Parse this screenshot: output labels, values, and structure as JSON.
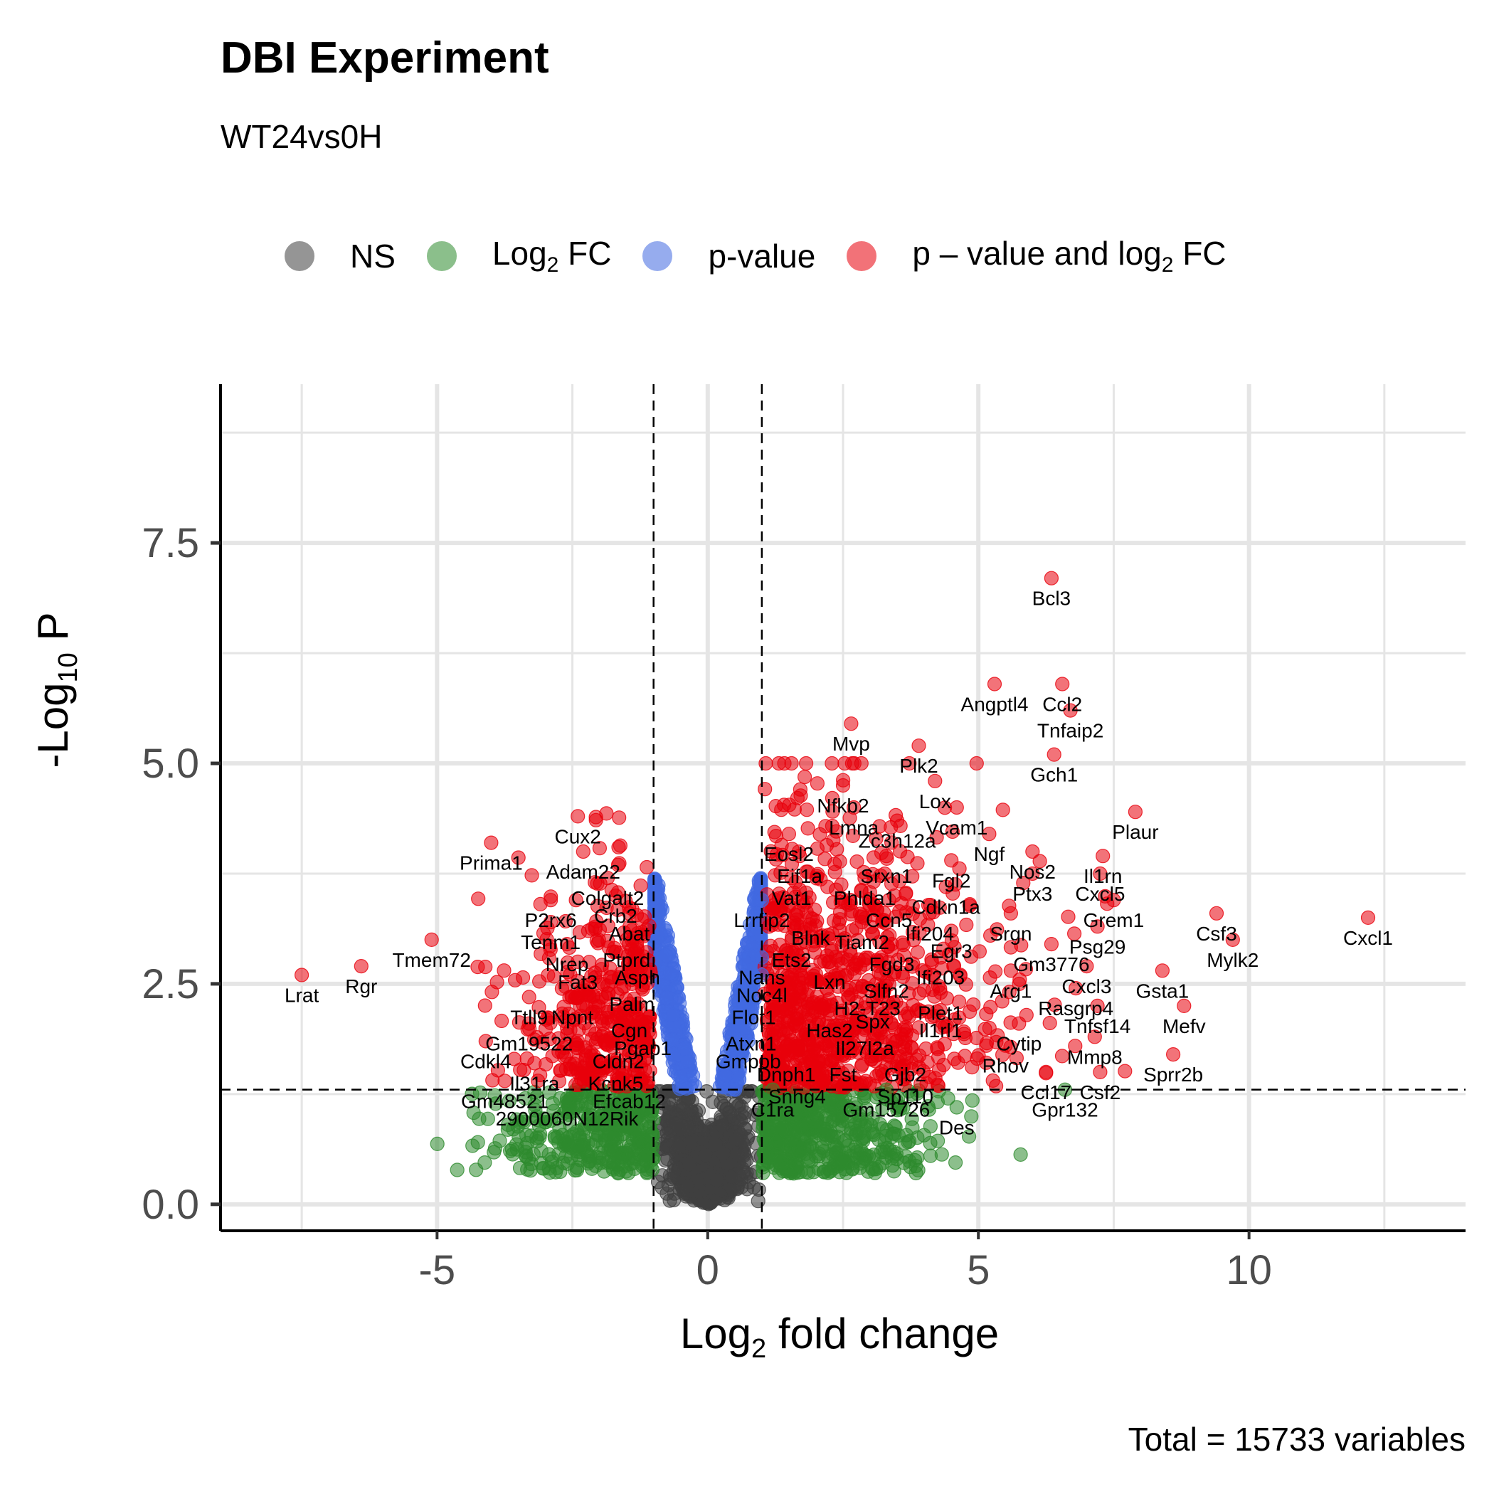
{
  "title": "DBI Experiment",
  "subtitle": "WT24vs0H",
  "caption": "Total = 15733 variables",
  "legend": [
    {
      "label": "NS",
      "color": "#404040"
    },
    {
      "label": "Log2 FC",
      "color": "#2e8b2e"
    },
    {
      "label": "p-value",
      "color": "#4169e1"
    },
    {
      "label": "p – value and log2 FC",
      "color": "#e8000b"
    }
  ],
  "chart_data": {
    "type": "scatter",
    "title": "DBI Experiment",
    "subtitle": "WT24vs0H",
    "xlabel": "Log2 fold change",
    "ylabel": "-Log10 P",
    "xlim": [
      -9.0,
      14.0
    ],
    "ylim": [
      -0.3,
      9.3
    ],
    "x_ticks": [
      -5,
      0,
      5,
      10
    ],
    "x_tick_labels": [
      "-5",
      "0",
      "5",
      "10"
    ],
    "y_ticks": [
      0.0,
      2.5,
      5.0,
      7.5
    ],
    "y_tick_labels": [
      "0.0",
      "2.5",
      "5.0",
      "7.5"
    ],
    "grid": true,
    "thresholds": {
      "log2fc": [
        -1,
        1
      ],
      "neg_log10_p": 1.3
    },
    "series_colors": {
      "NS": "#404040",
      "Log2 FC": "#2e8b2e",
      "p-value": "#4169e1",
      "p-value and log2 FC": "#e8000b"
    },
    "labeled_points": [
      {
        "gene": "Bcl3",
        "x": 6.35,
        "y": 7.1
      },
      {
        "gene": "Angptl4",
        "x": 5.3,
        "y": 5.9
      },
      {
        "gene": "Ccl2",
        "x": 6.55,
        "y": 5.9
      },
      {
        "gene": "Tnfaip2",
        "x": 6.7,
        "y": 5.6
      },
      {
        "gene": "Gch1",
        "x": 6.4,
        "y": 5.1
      },
      {
        "gene": "Mvp",
        "x": 2.65,
        "y": 5.45
      },
      {
        "gene": "Plk2",
        "x": 3.9,
        "y": 5.2
      },
      {
        "gene": "Nfkb2",
        "x": 2.5,
        "y": 4.75
      },
      {
        "gene": "Lox",
        "x": 4.2,
        "y": 4.8
      },
      {
        "gene": "Lmna",
        "x": 2.7,
        "y": 4.5
      },
      {
        "gene": "Vcam1",
        "x": 4.6,
        "y": 4.5
      },
      {
        "gene": "Zc3h12a",
        "x": 3.5,
        "y": 4.35
      },
      {
        "gene": "Ngf",
        "x": 5.2,
        "y": 4.2
      },
      {
        "gene": "Plaur",
        "x": 7.9,
        "y": 4.45
      },
      {
        "gene": "Eosl2",
        "x": 1.5,
        "y": 4.2
      },
      {
        "gene": "Nos2",
        "x": 6.0,
        "y": 4.0
      },
      {
        "gene": "Il1rn",
        "x": 7.3,
        "y": 3.95
      },
      {
        "gene": "Eif1a",
        "x": 1.7,
        "y": 3.95
      },
      {
        "gene": "Srxn1",
        "x": 3.3,
        "y": 3.95
      },
      {
        "gene": "Fgl2",
        "x": 4.5,
        "y": 3.9
      },
      {
        "gene": "Ptx3",
        "x": 6.0,
        "y": 3.75
      },
      {
        "gene": "Cxcl5",
        "x": 7.25,
        "y": 3.75
      },
      {
        "gene": "Vat1",
        "x": 1.55,
        "y": 3.7
      },
      {
        "gene": "Phlda1",
        "x": 2.9,
        "y": 3.7
      },
      {
        "gene": "Cdkn1a",
        "x": 4.4,
        "y": 3.6
      },
      {
        "gene": "Grem1",
        "x": 7.5,
        "y": 3.45
      },
      {
        "gene": "Lrrfip2",
        "x": 1.0,
        "y": 3.45
      },
      {
        "gene": "Ccn5",
        "x": 3.35,
        "y": 3.45
      },
      {
        "gene": "Ifi204",
        "x": 4.1,
        "y": 3.3
      },
      {
        "gene": "Srgn",
        "x": 5.6,
        "y": 3.3
      },
      {
        "gene": "Csf3",
        "x": 9.4,
        "y": 3.3
      },
      {
        "gene": "Cxcl1",
        "x": 12.2,
        "y": 3.25
      },
      {
        "gene": "Blnk",
        "x": 1.9,
        "y": 3.25
      },
      {
        "gene": "Tiam2",
        "x": 2.85,
        "y": 3.2
      },
      {
        "gene": "Psg29",
        "x": 7.2,
        "y": 3.15
      },
      {
        "gene": "Egr3",
        "x": 4.5,
        "y": 3.1
      },
      {
        "gene": "Ets2",
        "x": 1.55,
        "y": 3.0
      },
      {
        "gene": "Gm3776",
        "x": 6.35,
        "y": 2.95
      },
      {
        "gene": "Mylk2",
        "x": 9.7,
        "y": 3.0
      },
      {
        "gene": "Fgd3",
        "x": 3.4,
        "y": 2.95
      },
      {
        "gene": "Ifi203",
        "x": 4.3,
        "y": 2.8
      },
      {
        "gene": "Nans",
        "x": 1.0,
        "y": 2.8
      },
      {
        "gene": "Lxn",
        "x": 2.25,
        "y": 2.75
      },
      {
        "gene": "Cxcl3",
        "x": 7.0,
        "y": 2.7
      },
      {
        "gene": "Gsta1",
        "x": 8.4,
        "y": 2.65
      },
      {
        "gene": "Noc4l",
        "x": 1.0,
        "y": 2.6
      },
      {
        "gene": "Slfn2",
        "x": 3.3,
        "y": 2.65
      },
      {
        "gene": "Arg1",
        "x": 5.6,
        "y": 2.65
      },
      {
        "gene": "Flot1",
        "x": 0.85,
        "y": 2.35
      },
      {
        "gene": "H2-T23",
        "x": 2.95,
        "y": 2.45
      },
      {
        "gene": "Plet1",
        "x": 4.3,
        "y": 2.4
      },
      {
        "gene": "Rasgrp4",
        "x": 6.8,
        "y": 2.45
      },
      {
        "gene": "Tnfsf14",
        "x": 7.2,
        "y": 2.25
      },
      {
        "gene": "Mefv",
        "x": 8.8,
        "y": 2.25
      },
      {
        "gene": "Has2",
        "x": 2.25,
        "y": 2.2
      },
      {
        "gene": "Spx",
        "x": 3.05,
        "y": 2.3
      },
      {
        "gene": "Il1rl1",
        "x": 4.3,
        "y": 2.2
      },
      {
        "gene": "Atxn1",
        "x": 0.8,
        "y": 2.05
      },
      {
        "gene": "Il27l2a",
        "x": 2.9,
        "y": 2.0
      },
      {
        "gene": "Cytip",
        "x": 5.75,
        "y": 2.05
      },
      {
        "gene": "Mmp8",
        "x": 7.15,
        "y": 1.9
      },
      {
        "gene": "Gmppb",
        "x": 0.75,
        "y": 1.85
      },
      {
        "gene": "Rhov",
        "x": 5.5,
        "y": 1.8
      },
      {
        "gene": "Dnph1",
        "x": 1.45,
        "y": 1.7
      },
      {
        "gene": "Fst",
        "x": 2.5,
        "y": 1.7
      },
      {
        "gene": "Gjb2",
        "x": 3.65,
        "y": 1.7
      },
      {
        "gene": "Ccl17",
        "x": 6.25,
        "y": 1.5
      },
      {
        "gene": "Csf2",
        "x": 7.25,
        "y": 1.5
      },
      {
        "gene": "Sprr2b",
        "x": 8.6,
        "y": 1.7
      },
      {
        "gene": "Snhg4",
        "x": 1.65,
        "y": 1.45
      },
      {
        "gene": "Sp110",
        "x": 3.65,
        "y": 1.45
      },
      {
        "gene": "Gm15726",
        "x": 3.3,
        "y": 1.3
      },
      {
        "gene": "Gpr132",
        "x": 6.6,
        "y": 1.3
      },
      {
        "gene": "Des",
        "x": 4.6,
        "y": 1.1
      },
      {
        "gene": "C1ra",
        "x": 1.2,
        "y": 1.3
      },
      {
        "gene": "Cux2",
        "x": -2.4,
        "y": 4.4
      },
      {
        "gene": "Prima1",
        "x": -4.0,
        "y": 4.1
      },
      {
        "gene": "Adam22",
        "x": -2.3,
        "y": 4.0
      },
      {
        "gene": "Colgalt2",
        "x": -1.85,
        "y": 3.7
      },
      {
        "gene": "P2rx6",
        "x": -2.9,
        "y": 3.45
      },
      {
        "gene": "Crb2",
        "x": -1.7,
        "y": 3.5
      },
      {
        "gene": "Abat",
        "x": -1.45,
        "y": 3.3
      },
      {
        "gene": "Tenm1",
        "x": -2.9,
        "y": 3.2
      },
      {
        "gene": "Ptprd",
        "x": -1.5,
        "y": 3.0
      },
      {
        "gene": "Nrep",
        "x": -2.6,
        "y": 2.95
      },
      {
        "gene": "Tmem72",
        "x": -5.1,
        "y": 3.0
      },
      {
        "gene": "Asph",
        "x": -1.3,
        "y": 2.8
      },
      {
        "gene": "Fat3",
        "x": -2.4,
        "y": 2.75
      },
      {
        "gene": "Lrat",
        "x": -7.5,
        "y": 2.6
      },
      {
        "gene": "Rgr",
        "x": -6.4,
        "y": 2.7
      },
      {
        "gene": "Palm",
        "x": -1.4,
        "y": 2.5
      },
      {
        "gene": "Npnt",
        "x": -2.5,
        "y": 2.35
      },
      {
        "gene": "Ttll9",
        "x": -3.3,
        "y": 2.35
      },
      {
        "gene": "Cgn",
        "x": -1.45,
        "y": 2.2
      },
      {
        "gene": "Gm19522",
        "x": -3.3,
        "y": 2.05
      },
      {
        "gene": "Pgap1",
        "x": -1.2,
        "y": 2.0
      },
      {
        "gene": "Cdkl4",
        "x": -4.1,
        "y": 1.85
      },
      {
        "gene": "Cldn2",
        "x": -1.65,
        "y": 1.85
      },
      {
        "gene": "Il31ra",
        "x": -3.2,
        "y": 1.6
      },
      {
        "gene": "Kcnk5",
        "x": -1.7,
        "y": 1.6
      },
      {
        "gene": "Gm48521",
        "x": -3.75,
        "y": 1.4
      },
      {
        "gene": "Efcab12",
        "x": -1.45,
        "y": 1.4
      },
      {
        "gene": "2900060N12Rik",
        "x": -2.6,
        "y": 1.2
      }
    ]
  }
}
